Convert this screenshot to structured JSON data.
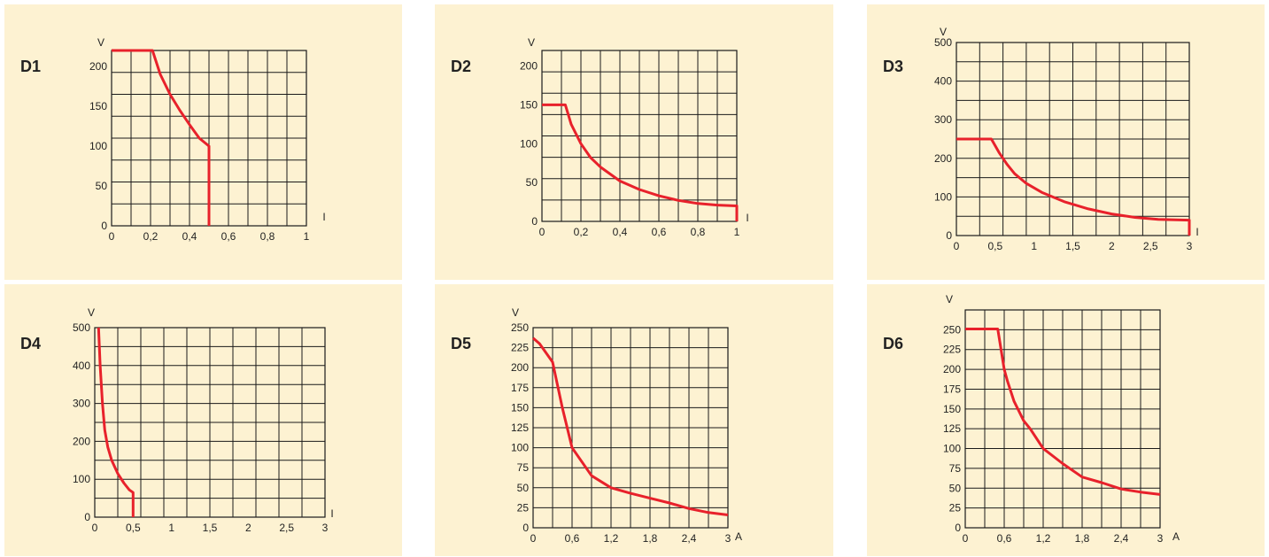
{
  "colors": {
    "panel_bg": "#fdf2d2",
    "grid": "#1a1a1a",
    "curve": "#e8212b"
  },
  "chart_data": [
    {
      "id": "D1",
      "title": "D1",
      "type": "line",
      "xlabel": "I",
      "ylabel": "V",
      "xlim": [
        0,
        1
      ],
      "ylim": [
        0,
        220
      ],
      "xticks": [
        0,
        0.2,
        0.4,
        0.6,
        0.8,
        1
      ],
      "xtick_labels": [
        "0",
        "0,2",
        "0,4",
        "0,6",
        "0,8",
        "1"
      ],
      "yticks": [
        0,
        50,
        100,
        150,
        200
      ],
      "ytick_labels": [
        "0",
        "50",
        "100",
        "150",
        "200"
      ],
      "grid": true,
      "series": [
        {
          "x": [
            0,
            0.21,
            0.25,
            0.3,
            0.35,
            0.4,
            0.45,
            0.5,
            0.5
          ],
          "y": [
            220,
            220,
            190,
            165,
            145,
            127,
            110,
            100,
            0
          ]
        }
      ]
    },
    {
      "id": "D2",
      "title": "D2",
      "type": "line",
      "xlabel": "I",
      "ylabel": "V",
      "xlim": [
        0,
        1
      ],
      "ylim": [
        0,
        220
      ],
      "xticks": [
        0,
        0.2,
        0.4,
        0.6,
        0.8,
        1
      ],
      "xtick_labels": [
        "0",
        "0,2",
        "0,4",
        "0,6",
        "0,8",
        "1"
      ],
      "yticks": [
        0,
        50,
        100,
        150,
        200
      ],
      "ytick_labels": [
        "0",
        "50",
        "100",
        "150",
        "200"
      ],
      "grid": true,
      "series": [
        {
          "x": [
            0,
            0.12,
            0.15,
            0.2,
            0.25,
            0.3,
            0.4,
            0.5,
            0.6,
            0.7,
            0.8,
            0.9,
            1,
            1
          ],
          "y": [
            150,
            150,
            125,
            100,
            82,
            70,
            52,
            41,
            33,
            27,
            23,
            21,
            20,
            0
          ]
        }
      ]
    },
    {
      "id": "D3",
      "title": "D3",
      "type": "line",
      "xlabel": "I",
      "ylabel": "V",
      "xlim": [
        0,
        3
      ],
      "ylim": [
        0,
        500
      ],
      "xticks": [
        0,
        0.5,
        1,
        1.5,
        2,
        2.5,
        3
      ],
      "xtick_labels": [
        "0",
        "0,5",
        "1",
        "1,5",
        "2",
        "2,5",
        "3"
      ],
      "yticks": [
        0,
        100,
        200,
        300,
        400,
        500
      ],
      "ytick_labels": [
        "0",
        "100",
        "200",
        "300",
        "400",
        "500"
      ],
      "grid": true,
      "series": [
        {
          "x": [
            0,
            0.45,
            0.55,
            0.65,
            0.75,
            0.9,
            1.1,
            1.4,
            1.7,
            2,
            2.3,
            2.6,
            3,
            3
          ],
          "y": [
            250,
            250,
            215,
            185,
            160,
            135,
            112,
            87,
            69,
            56,
            47,
            42,
            40,
            0
          ]
        }
      ]
    },
    {
      "id": "D4",
      "title": "D4",
      "type": "line",
      "xlabel": "I",
      "ylabel": "V",
      "xlim": [
        0,
        3
      ],
      "ylim": [
        0,
        500
      ],
      "xticks": [
        0,
        0.5,
        1,
        1.5,
        2,
        2.5,
        3
      ],
      "xtick_labels": [
        "0",
        "0,5",
        "1",
        "1,5",
        "2",
        "2,5",
        "3"
      ],
      "yticks": [
        0,
        100,
        200,
        300,
        400,
        500
      ],
      "ytick_labels": [
        "0",
        "100",
        "200",
        "300",
        "400",
        "500"
      ],
      "grid": true,
      "series": [
        {
          "x": [
            0.05,
            0.07,
            0.1,
            0.13,
            0.17,
            0.22,
            0.3,
            0.38,
            0.45,
            0.5,
            0.5
          ],
          "y": [
            500,
            400,
            300,
            230,
            185,
            150,
            115,
            90,
            72,
            65,
            0
          ]
        }
      ]
    },
    {
      "id": "D5",
      "title": "D5",
      "type": "line",
      "xlabel": "A",
      "ylabel": "V",
      "xlim": [
        0,
        3
      ],
      "ylim": [
        0,
        250
      ],
      "xticks": [
        0,
        0.6,
        1.2,
        1.8,
        2.4,
        3
      ],
      "xtick_labels": [
        "0",
        "0,6",
        "1,2",
        "1,8",
        "2,4",
        "3"
      ],
      "yticks": [
        0,
        25,
        50,
        75,
        100,
        125,
        150,
        175,
        200,
        225,
        250
      ],
      "ytick_labels": [
        "0",
        "25",
        "50",
        "75",
        "100",
        "125",
        "150",
        "175",
        "200",
        "225",
        "250"
      ],
      "grid": true,
      "series": [
        {
          "x": [
            0,
            0.1,
            0.3,
            0.45,
            0.6,
            0.9,
            1.2,
            1.5,
            1.8,
            2.1,
            2.4,
            2.7,
            3
          ],
          "y": [
            237,
            230,
            207,
            150,
            100,
            65,
            50,
            43,
            37,
            31,
            24,
            19,
            16
          ]
        }
      ]
    },
    {
      "id": "D6",
      "title": "D6",
      "type": "line",
      "xlabel": "A",
      "ylabel": "V",
      "xlim": [
        0,
        3
      ],
      "ylim": [
        0,
        275
      ],
      "xticks": [
        0,
        0.6,
        1.2,
        1.8,
        2.4,
        3
      ],
      "xtick_labels": [
        "0",
        "0,6",
        "1,2",
        "1,8",
        "2,4",
        "3"
      ],
      "yticks": [
        0,
        25,
        50,
        75,
        100,
        125,
        150,
        175,
        200,
        225,
        250
      ],
      "ytick_labels": [
        "0",
        "25",
        "50",
        "75",
        "100",
        "125",
        "150",
        "175",
        "200",
        "225",
        "250"
      ],
      "grid": true,
      "series": [
        {
          "x": [
            0,
            0.5,
            0.6,
            0.65,
            0.75,
            0.9,
            1.0,
            1.2,
            1.5,
            1.8,
            2.1,
            2.4,
            2.7,
            3
          ],
          "y": [
            251,
            251,
            200,
            185,
            160,
            135,
            125,
            100,
            81,
            64,
            57,
            49,
            45,
            42
          ]
        }
      ]
    }
  ]
}
